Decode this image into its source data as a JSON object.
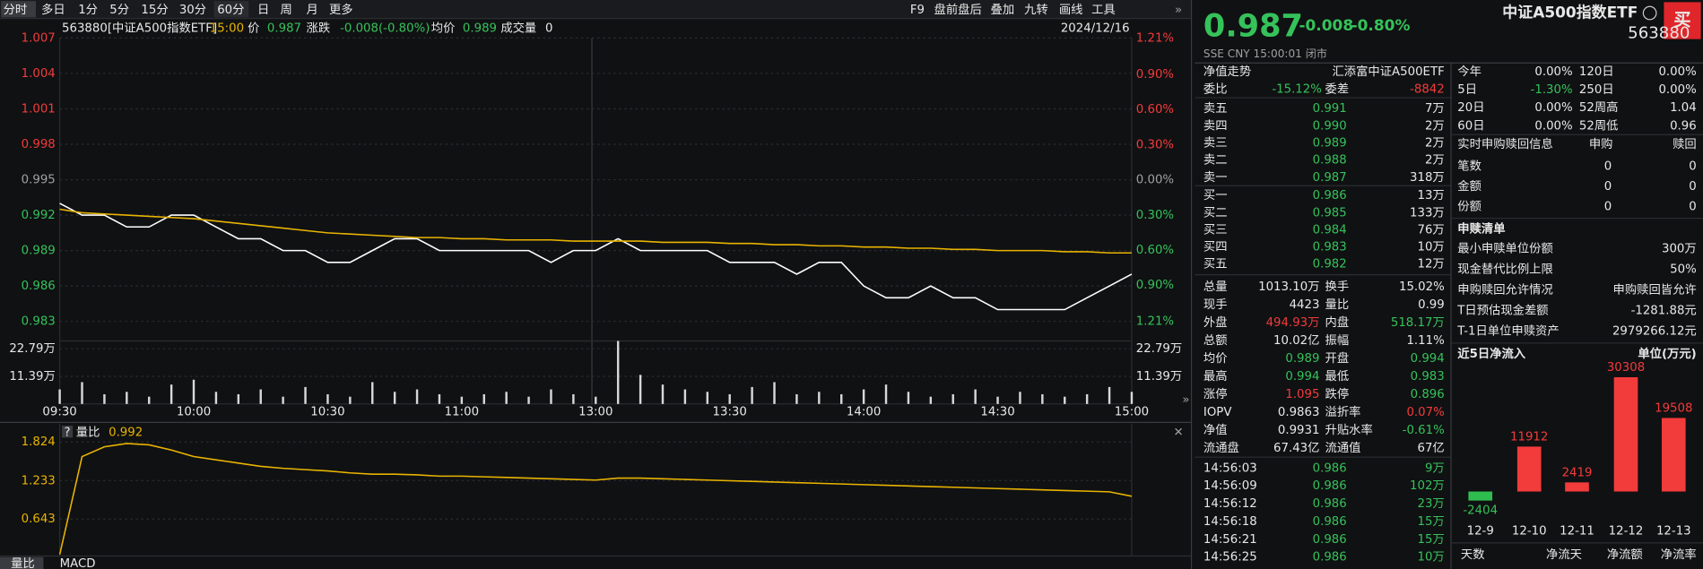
{
  "toolbar": {
    "left": [
      "分时",
      "多日",
      "1分",
      "5分",
      "15分",
      "30分",
      "60分",
      "日",
      "周",
      "月",
      "更多"
    ],
    "right": [
      "F9",
      "盘前盘后",
      "叠加",
      "九转",
      "画线",
      "工具"
    ]
  },
  "info": {
    "code": "563880[中证A500指数ETF]",
    "time": "15:00",
    "price_label": "价",
    "price": "0.987",
    "change_label": "涨跌",
    "change": "-0.008(-0.80%)",
    "avg_label": "均价",
    "avg": "0.989",
    "vol_label": "成交量",
    "vol": "0",
    "date": "2024/12/16"
  },
  "chart_data": [
    {
      "type": "line",
      "categories": [
        "09:30",
        null,
        null,
        null,
        null,
        null,
        "10:00",
        null,
        null,
        null,
        null,
        null,
        "10:30",
        null,
        null,
        null,
        null,
        null,
        "11:00",
        null,
        null,
        null,
        null,
        null,
        "13:00",
        null,
        null,
        null,
        null,
        null,
        "13:30",
        null,
        null,
        null,
        null,
        null,
        "14:00",
        null,
        null,
        null,
        null,
        null,
        "14:30",
        null,
        null,
        null,
        null,
        null,
        "15:00"
      ],
      "series": [
        {
          "name": "价",
          "color": "#ffffff",
          "values": [
            0.993,
            0.992,
            0.992,
            0.991,
            0.991,
            0.992,
            0.992,
            0.991,
            0.99,
            0.99,
            0.989,
            0.989,
            0.988,
            0.988,
            0.989,
            0.99,
            0.99,
            0.989,
            0.989,
            0.989,
            0.989,
            0.989,
            0.988,
            0.989,
            0.989,
            0.99,
            0.989,
            0.989,
            0.989,
            0.989,
            0.988,
            0.988,
            0.988,
            0.987,
            0.988,
            0.988,
            0.986,
            0.985,
            0.985,
            0.986,
            0.985,
            0.985,
            0.984,
            0.984,
            0.984,
            0.984,
            0.985,
            0.986,
            0.987
          ]
        },
        {
          "name": "均价",
          "color": "#e8b400",
          "values": [
            0.9925,
            0.9922,
            0.9921,
            0.992,
            0.9919,
            0.9918,
            0.9917,
            0.9915,
            0.9913,
            0.9911,
            0.9909,
            0.9907,
            0.9905,
            0.9904,
            0.9903,
            0.9902,
            0.9901,
            0.9901,
            0.99,
            0.99,
            0.9899,
            0.9899,
            0.9899,
            0.9898,
            0.9898,
            0.9898,
            0.9898,
            0.9897,
            0.9897,
            0.9897,
            0.9896,
            0.9896,
            0.9895,
            0.9895,
            0.9894,
            0.9894,
            0.9893,
            0.9893,
            0.9892,
            0.9892,
            0.9891,
            0.9891,
            0.989,
            0.989,
            0.989,
            0.9889,
            0.9889,
            0.9888,
            0.9888
          ]
        }
      ],
      "ylim": [
        0.983,
        1.007
      ],
      "yticks": [
        1.007,
        1.004,
        1.001,
        0.998,
        0.995,
        0.992,
        0.989,
        0.986,
        0.983
      ],
      "y2lim": [
        -1.21,
        1.21
      ],
      "y2ticks": [
        {
          "value": 1.21,
          "label": "1.21%"
        },
        {
          "value": 0.9,
          "label": "0.90%"
        },
        {
          "value": 0.6,
          "label": "0.60%"
        },
        {
          "value": 0.3,
          "label": "0.30%"
        },
        {
          "value": 0,
          "label": "0.00%"
        },
        {
          "value": -0.3,
          "label": "0.30%"
        },
        {
          "value": -0.6,
          "label": "0.60%"
        },
        {
          "value": -0.9,
          "label": "0.90%"
        },
        {
          "value": -1.21,
          "label": "1.21%"
        }
      ],
      "grid": true
    },
    {
      "type": "bar",
      "values": [
        6,
        9,
        4,
        5,
        3,
        8,
        10,
        5,
        4,
        6,
        3,
        7,
        4,
        3,
        9,
        5,
        6,
        4,
        3,
        4,
        5,
        3,
        6,
        4,
        3,
        26,
        12,
        8,
        6,
        5,
        4,
        7,
        9,
        4,
        5,
        4,
        6,
        8,
        5,
        3,
        4,
        6,
        3,
        5,
        4,
        3,
        4,
        7,
        5
      ],
      "color": "#d8d8d8",
      "ylim": [
        0,
        26
      ],
      "yticks": [
        {
          "value": 22.79,
          "label": "22.79万"
        },
        {
          "value": 11.39,
          "label": "11.39万"
        }
      ]
    },
    {
      "type": "line",
      "name": "量比",
      "color": "#e8b400",
      "values": [
        0.1,
        1.6,
        1.75,
        1.8,
        1.78,
        1.7,
        1.6,
        1.55,
        1.5,
        1.45,
        1.42,
        1.4,
        1.38,
        1.35,
        1.33,
        1.33,
        1.32,
        1.3,
        1.3,
        1.29,
        1.28,
        1.27,
        1.26,
        1.25,
        1.24,
        1.27,
        1.27,
        1.26,
        1.25,
        1.24,
        1.23,
        1.22,
        1.21,
        1.2,
        1.19,
        1.18,
        1.17,
        1.16,
        1.15,
        1.14,
        1.13,
        1.12,
        1.11,
        1.1,
        1.09,
        1.08,
        1.07,
        1.06,
        0.992
      ],
      "ylim": [
        0.077,
        2.107
      ],
      "yticks": [
        1.824,
        1.233,
        0.643
      ],
      "grid": true
    },
    {
      "type": "bar",
      "title": "近5日净流入",
      "unit": "单位(万元)",
      "categories": [
        "12-9",
        "12-10",
        "12-11",
        "12-12",
        "12-13"
      ],
      "values": [
        -2404,
        11912,
        2419,
        30308,
        19508
      ],
      "color": "#f23b3b",
      "negative_color": "#2fbd4f",
      "ylim": [
        -5000,
        31000
      ]
    }
  ],
  "tabs": [
    "量比",
    "MACD"
  ],
  "quote": {
    "price": "0.987",
    "change": "-0.008",
    "change_pct": "-0.80%",
    "name": "中证A500指数ETF",
    "code": "563880",
    "buy": "买",
    "meta": "SSE  CNY  15:00:01  闭市"
  },
  "book": {
    "nav_label": "净值走势",
    "fund": "汇添富中证A500ETF",
    "ratio": [
      "委比",
      "-15.12%",
      "委差",
      "-8842"
    ],
    "sell": [
      [
        "卖五",
        "0.991",
        "7万"
      ],
      [
        "卖四",
        "0.990",
        "2万"
      ],
      [
        "卖三",
        "0.989",
        "2万"
      ],
      [
        "卖二",
        "0.988",
        "2万"
      ],
      [
        "卖一",
        "0.987",
        "318万"
      ]
    ],
    "buy": [
      [
        "买一",
        "0.986",
        "13万"
      ],
      [
        "买二",
        "0.985",
        "133万"
      ],
      [
        "买三",
        "0.984",
        "76万"
      ],
      [
        "买四",
        "0.983",
        "10万"
      ],
      [
        "买五",
        "0.982",
        "12万"
      ]
    ]
  },
  "stats": [
    [
      "总量",
      "1013.10万",
      "换手",
      "15.02%"
    ],
    [
      "现手",
      "4423",
      "量比",
      "0.99"
    ],
    [
      "外盘",
      "494.93万",
      "内盘",
      "518.17万"
    ],
    [
      "总额",
      "10.02亿",
      "振幅",
      "1.11%"
    ],
    [
      "均价",
      "0.989",
      "开盘",
      "0.994"
    ],
    [
      "最高",
      "0.994",
      "最低",
      "0.983"
    ],
    [
      "涨停",
      "1.095",
      "跌停",
      "0.896"
    ],
    [
      "IOPV",
      "0.9863",
      "溢折率",
      "0.07%"
    ],
    [
      "净值",
      "0.9931",
      "升贴水率",
      "-0.61%"
    ],
    [
      "流通盘",
      "67.43亿",
      "流通值",
      "67亿"
    ]
  ],
  "trades": [
    [
      "14:56:03",
      "0.986",
      "9万"
    ],
    [
      "14:56:09",
      "0.986",
      "102万"
    ],
    [
      "14:56:12",
      "0.986",
      "23万"
    ],
    [
      "14:56:18",
      "0.986",
      "15万"
    ],
    [
      "14:56:21",
      "0.986",
      "15万"
    ],
    [
      "14:56:25",
      "0.986",
      "10万"
    ]
  ],
  "periods": [
    [
      "今年",
      "0.00%",
      "120日",
      "0.00%"
    ],
    [
      "5日",
      "-1.30%",
      "250日",
      "0.00%"
    ],
    [
      "20日",
      "0.00%",
      "52周高",
      "1.04"
    ],
    [
      "60日",
      "0.00%",
      "52周低",
      "0.96"
    ]
  ],
  "realtime": {
    "header": [
      "实时申购赎回信息",
      "申购",
      "赎回"
    ],
    "rows": [
      [
        "笔数",
        "0",
        "0"
      ],
      [
        "金额",
        "0",
        "0"
      ],
      [
        "份额",
        "0",
        "0"
      ]
    ]
  },
  "list": {
    "title": "申赎清单",
    "rows": [
      [
        "最小申赎单位份额",
        "300万"
      ],
      [
        "现金替代比例上限",
        "50%"
      ],
      [
        "申购赎回允许情况",
        "申购赎回皆允许"
      ],
      [
        "T日预估现金差额",
        "-1281.88元"
      ],
      [
        "T-1日单位申赎资产",
        "2979266.12元"
      ]
    ]
  },
  "inflow_footer": [
    "天数",
    "净流天",
    "净流额",
    "净流率"
  ]
}
